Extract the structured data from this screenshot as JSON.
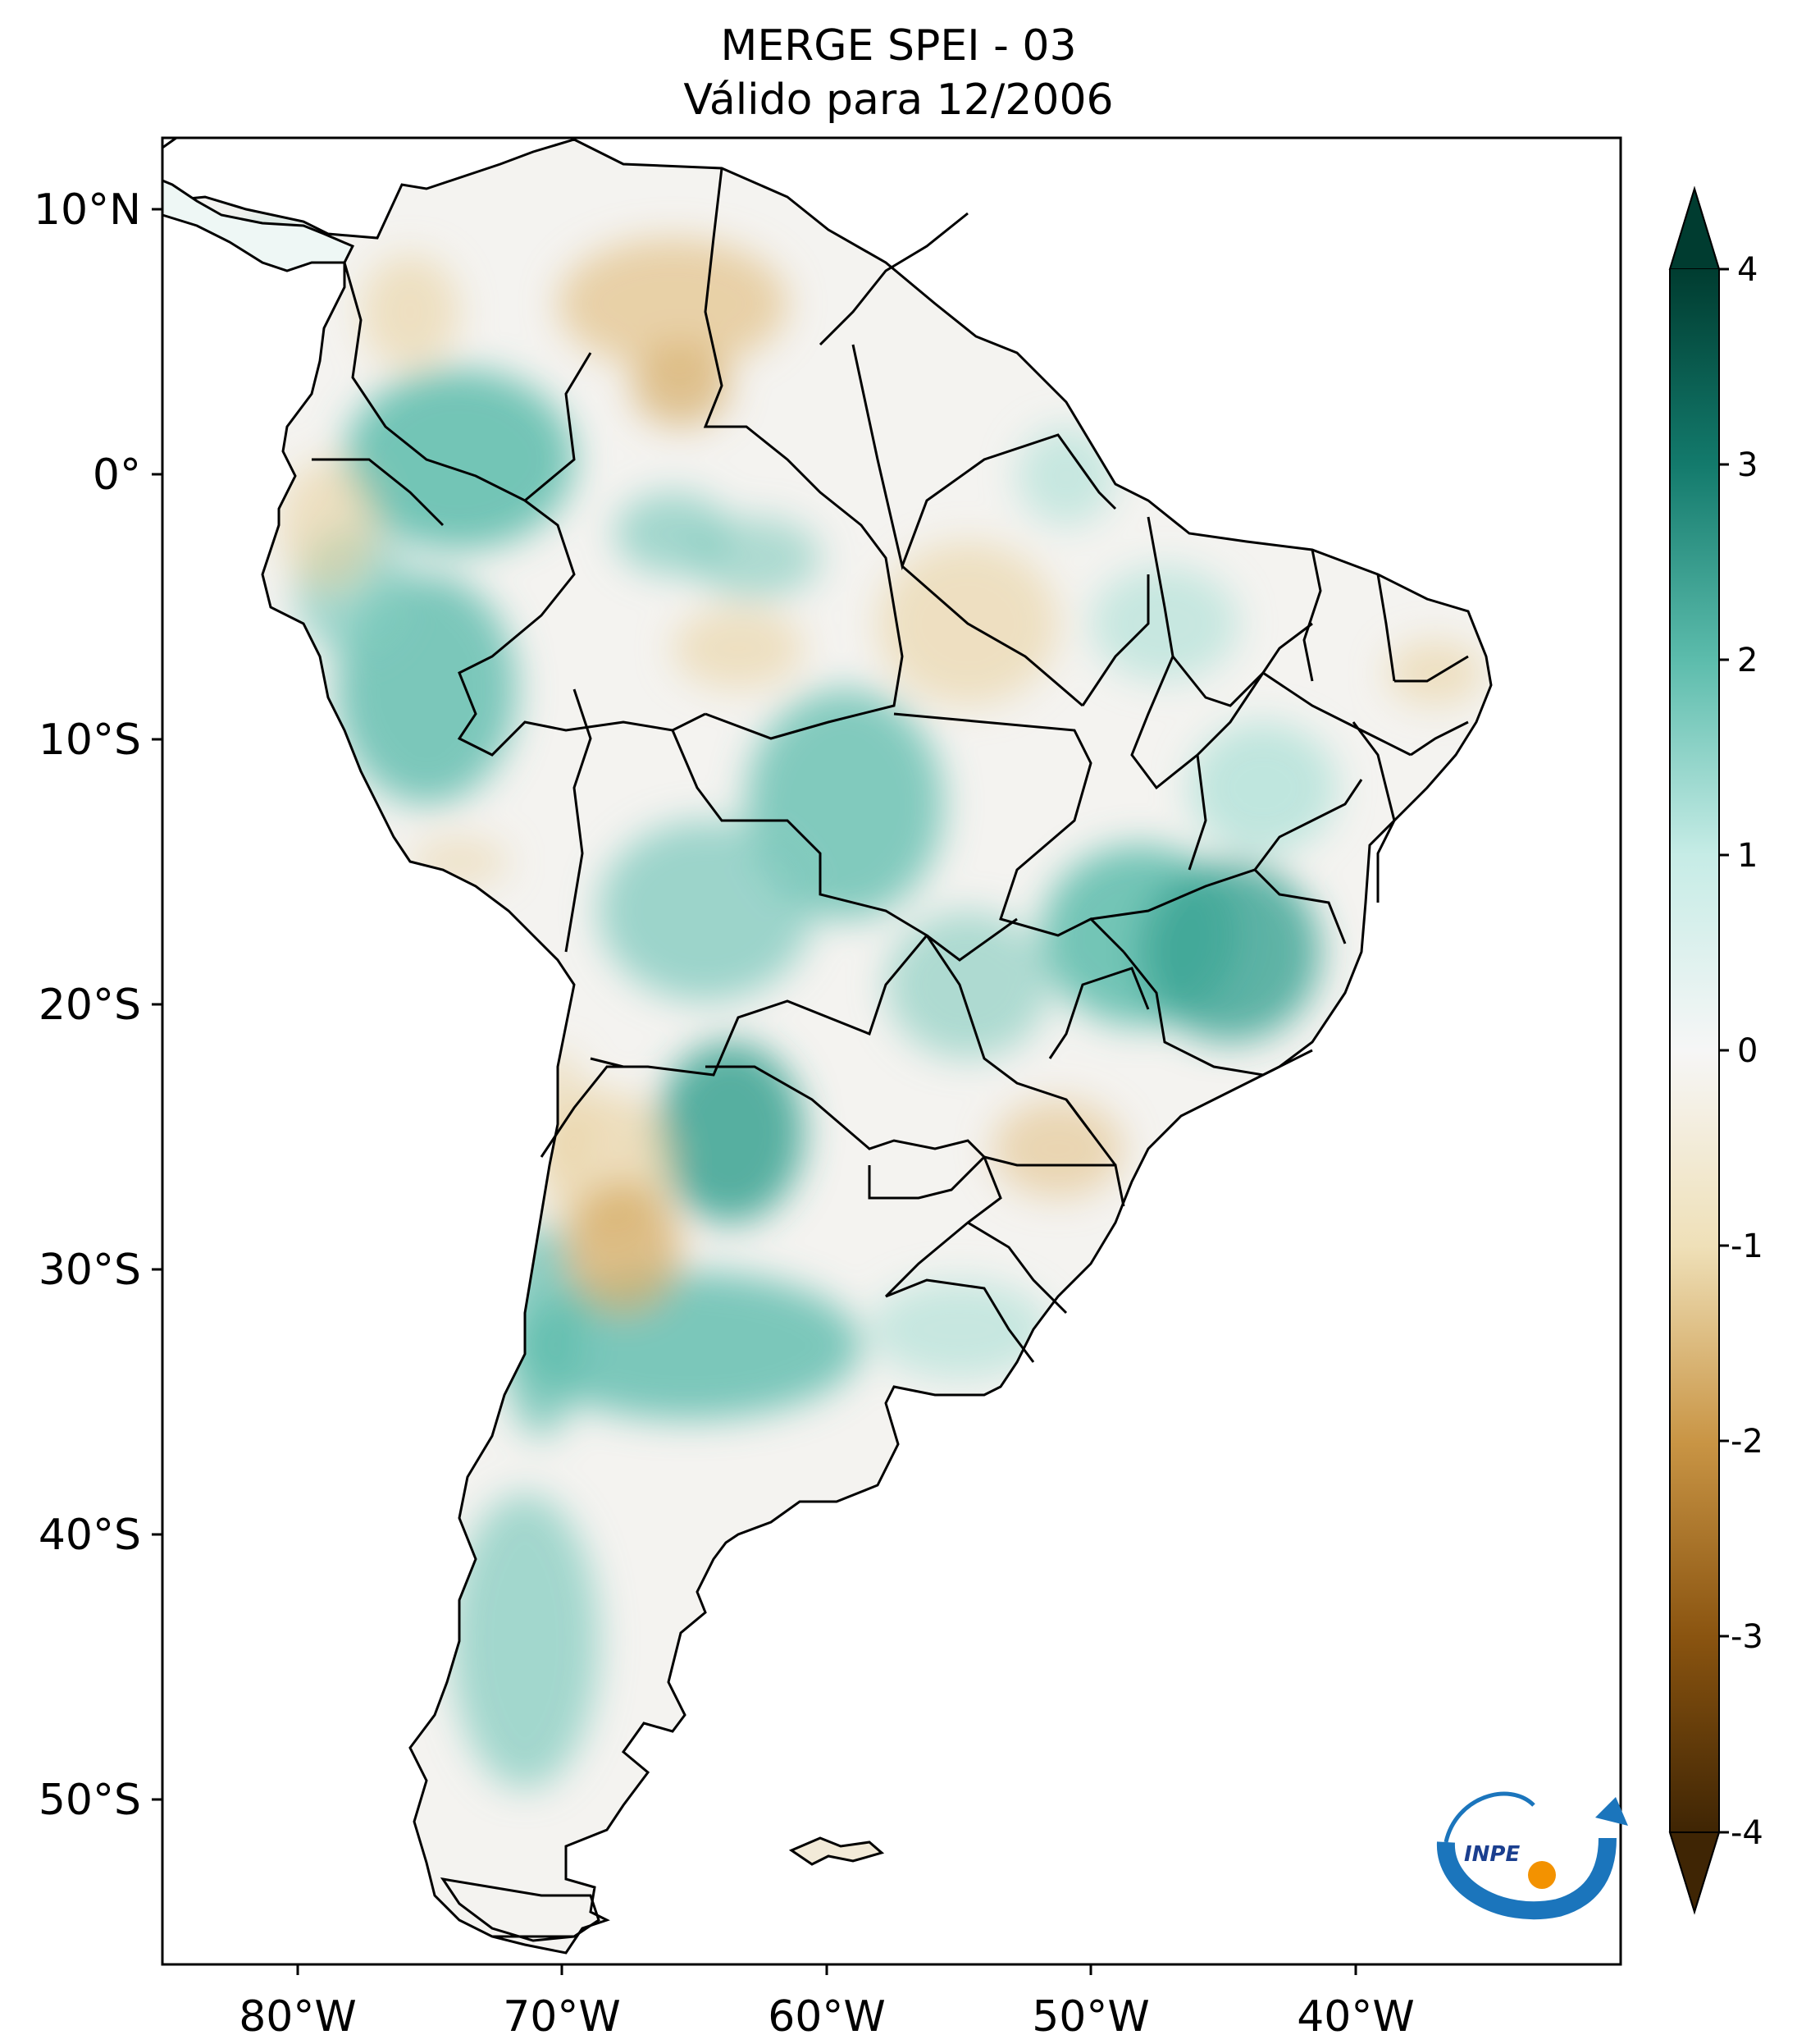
{
  "title": {
    "line1": "MERGE   SPEI - 03",
    "line2": "Válido para 12/2006"
  },
  "map": {
    "region": "South America",
    "lon_range": [
      -85,
      -30
    ],
    "lat_range": [
      -56,
      13
    ],
    "lon_ticks": [
      "80°W",
      "70°W",
      "60°W",
      "50°W",
      "40°W"
    ],
    "lat_ticks": [
      "10°N",
      "0°",
      "10°S",
      "20°S",
      "30°S",
      "40°S",
      "50°S"
    ]
  },
  "colorbar": {
    "min": -4,
    "max": 4,
    "extend": "both",
    "labels": [
      "4",
      "3",
      "2",
      "1",
      "0",
      "-1",
      "-2",
      "-3",
      "-4"
    ],
    "colors": {
      "-4": "#3f2504",
      "-3": "#8a5410",
      "-2": "#c99545",
      "-1": "#efe0b8",
      "0": "#f6f6f6",
      "1": "#c6ece6",
      "2": "#5cbcac",
      "3": "#137a6c",
      "4": "#003c30"
    }
  },
  "logo": {
    "text": "INPE"
  }
}
